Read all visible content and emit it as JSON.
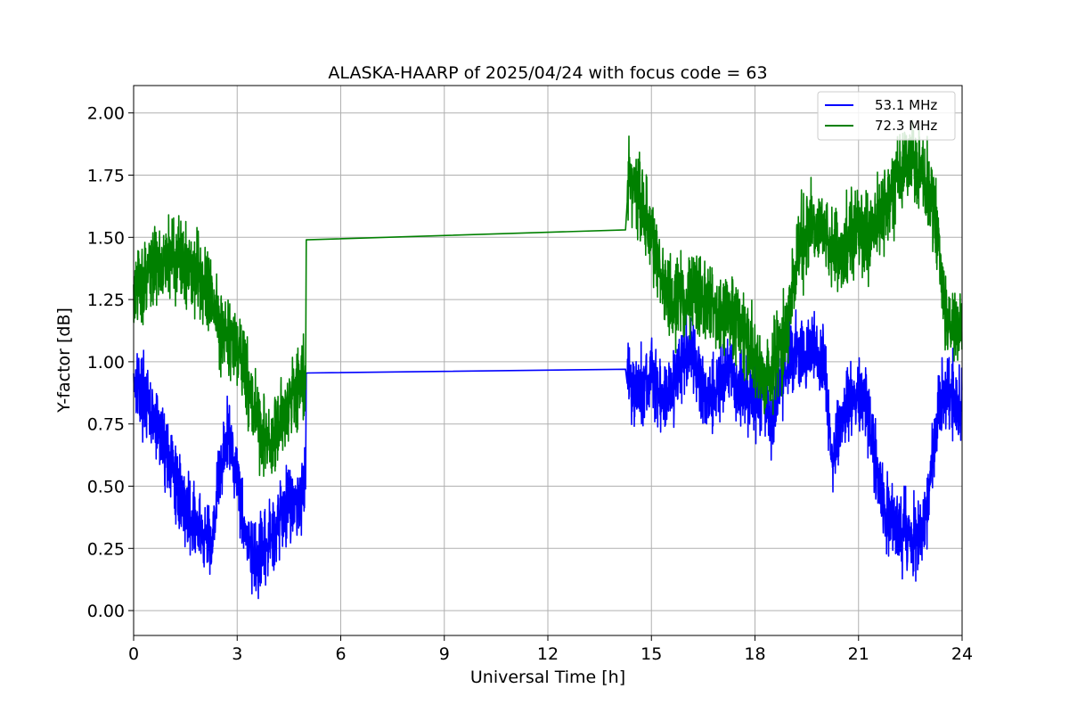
{
  "chart_data": {
    "type": "line",
    "title": "ALASKA-HAARP of 2025/04/24 with focus code = 63",
    "xlabel": "Universal Time [h]",
    "ylabel": "Y-factor [dB]",
    "xlim": [
      0,
      24
    ],
    "ylim": [
      -0.1,
      2.11
    ],
    "xticks": [
      0,
      3,
      6,
      9,
      12,
      15,
      18,
      21,
      24
    ],
    "xtick_labels": [
      "0",
      "3",
      "6",
      "9",
      "12",
      "15",
      "18",
      "21",
      "24"
    ],
    "yticks": [
      0.0,
      0.25,
      0.5,
      0.75,
      1.0,
      1.25,
      1.5,
      1.75,
      2.0
    ],
    "ytick_labels": [
      "0.00",
      "0.25",
      "0.50",
      "0.75",
      "1.00",
      "1.25",
      "1.50",
      "1.75",
      "2.00"
    ],
    "grid": true,
    "legend_position": "top-right",
    "series": [
      {
        "name": "53.1 MHz",
        "color": "#0000ff",
        "x": [
          0,
          0.25,
          0.5,
          0.75,
          1.0,
          1.25,
          1.5,
          1.75,
          2.0,
          2.25,
          2.5,
          2.75,
          3.0,
          3.25,
          3.5,
          3.75,
          4.0,
          4.25,
          4.5,
          4.75,
          4.98,
          5.0,
          14.25,
          14.3,
          14.5,
          14.75,
          15.0,
          15.25,
          15.5,
          15.75,
          16.0,
          16.25,
          16.5,
          16.75,
          17.0,
          17.25,
          17.5,
          17.75,
          18.0,
          18.25,
          18.5,
          18.75,
          19.0,
          19.25,
          19.5,
          19.75,
          20.0,
          20.25,
          20.5,
          20.75,
          21.0,
          21.25,
          21.5,
          21.75,
          22.0,
          22.25,
          22.5,
          22.75,
          23.0,
          23.25,
          23.5,
          23.75,
          24.0
        ],
        "y": [
          0.95,
          0.88,
          0.78,
          0.72,
          0.62,
          0.5,
          0.42,
          0.36,
          0.3,
          0.28,
          0.55,
          0.72,
          0.55,
          0.3,
          0.18,
          0.22,
          0.3,
          0.38,
          0.45,
          0.42,
          0.55,
          0.955,
          0.97,
          0.96,
          0.88,
          0.9,
          0.95,
          0.85,
          0.88,
          0.95,
          1.05,
          1.0,
          0.9,
          0.85,
          0.92,
          0.95,
          0.9,
          0.88,
          0.85,
          0.9,
          0.75,
          0.95,
          1.0,
          1.05,
          1.02,
          1.05,
          0.98,
          0.6,
          0.75,
          0.85,
          0.88,
          0.82,
          0.6,
          0.4,
          0.35,
          0.3,
          0.3,
          0.3,
          0.4,
          0.75,
          0.9,
          0.85,
          0.78
        ],
        "noise": 0.09
      },
      {
        "name": "72.3 MHz",
        "color": "#008000",
        "x": [
          0,
          0.25,
          0.5,
          0.75,
          1.0,
          1.25,
          1.5,
          1.75,
          2.0,
          2.25,
          2.5,
          2.75,
          3.0,
          3.25,
          3.5,
          3.75,
          4.0,
          4.25,
          4.5,
          4.75,
          4.98,
          5.0,
          14.25,
          14.3,
          14.5,
          14.75,
          15.0,
          15.25,
          15.5,
          15.75,
          16.0,
          16.25,
          16.5,
          16.75,
          17.0,
          17.25,
          17.5,
          17.75,
          18.0,
          18.25,
          18.5,
          18.75,
          19.0,
          19.25,
          19.5,
          19.75,
          20.0,
          20.25,
          20.5,
          20.75,
          21.0,
          21.25,
          21.5,
          21.75,
          22.0,
          22.25,
          22.5,
          22.75,
          23.0,
          23.25,
          23.5,
          23.75,
          24.0
        ],
        "y": [
          1.25,
          1.32,
          1.38,
          1.4,
          1.42,
          1.42,
          1.4,
          1.38,
          1.35,
          1.25,
          1.15,
          1.1,
          1.05,
          0.95,
          0.8,
          0.7,
          0.65,
          0.75,
          0.85,
          0.9,
          0.92,
          1.49,
          1.53,
          1.75,
          1.7,
          1.62,
          1.5,
          1.35,
          1.28,
          1.25,
          1.25,
          1.28,
          1.25,
          1.22,
          1.2,
          1.2,
          1.15,
          1.1,
          1.0,
          0.9,
          0.95,
          1.05,
          1.2,
          1.4,
          1.55,
          1.55,
          1.5,
          1.45,
          1.45,
          1.5,
          1.55,
          1.5,
          1.55,
          1.6,
          1.7,
          1.75,
          1.8,
          1.75,
          1.7,
          1.55,
          1.2,
          1.15,
          1.15
        ],
        "noise": 0.1
      }
    ]
  }
}
